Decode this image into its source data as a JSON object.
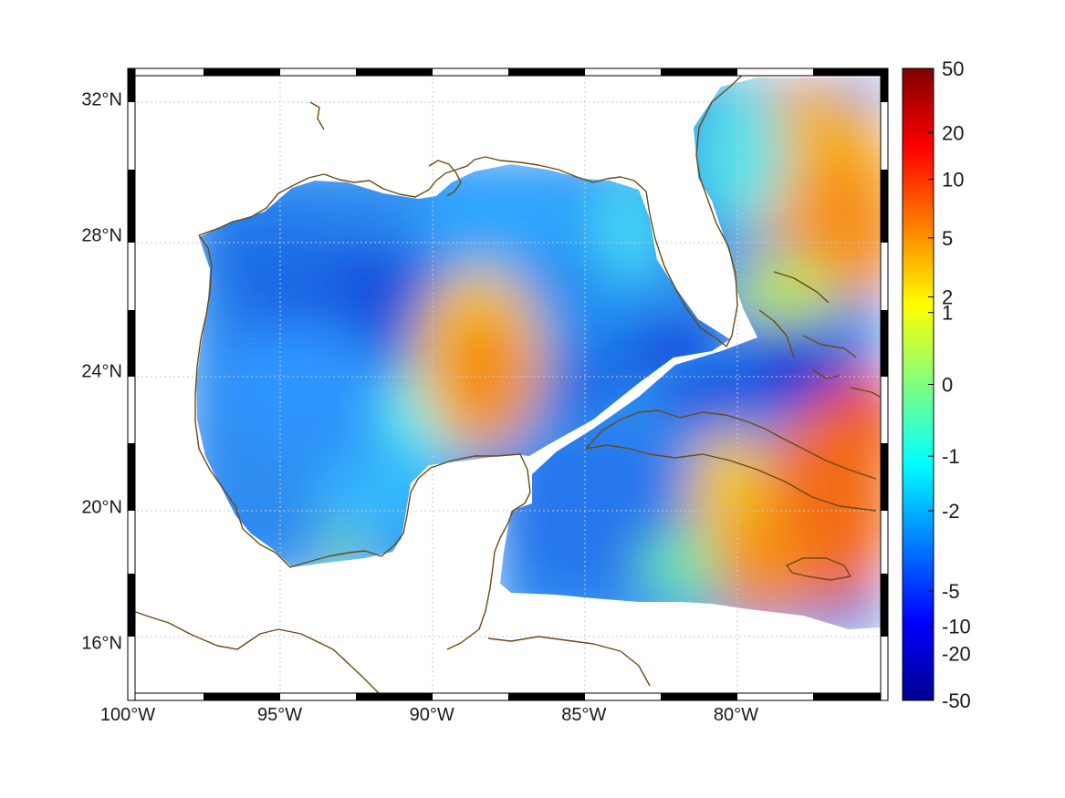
{
  "map": {
    "kind": "gridded-field",
    "region": "Gulf of Mexico and western Caribbean",
    "lon_range": [
      -100,
      -75
    ],
    "lat_range": [
      14.3,
      32.9
    ],
    "lon_ticks": [
      {
        "value": -100,
        "label": "100°W"
      },
      {
        "value": -95,
        "label": "95°W"
      },
      {
        "value": -90,
        "label": "90°W"
      },
      {
        "value": -85,
        "label": "85°W"
      },
      {
        "value": -80,
        "label": "80°W"
      }
    ],
    "lat_ticks": [
      {
        "value": 32,
        "label": "32°N"
      },
      {
        "value": 28,
        "label": "28°N"
      },
      {
        "value": 24,
        "label": "24°N"
      },
      {
        "value": 20,
        "label": "20°N"
      },
      {
        "value": 16,
        "label": "16°N"
      }
    ],
    "gridlines": "dotted",
    "frame_style": "alternating black and white",
    "coastline_color": "#6b4a12",
    "land_color": "#ffffff"
  },
  "colorbar": {
    "colormap": "jet",
    "scale": "symmetric log",
    "range": [
      -50,
      50
    ],
    "ticks": [
      {
        "value": 50,
        "label": "50"
      },
      {
        "value": 20,
        "label": "20"
      },
      {
        "value": 10,
        "label": "10"
      },
      {
        "value": 5,
        "label": "5"
      },
      {
        "value": 2,
        "label": "2"
      },
      {
        "value": 1,
        "label": "1"
      },
      {
        "value": 0,
        "label": "0"
      },
      {
        "value": -1,
        "label": "-1"
      },
      {
        "value": -2,
        "label": "-2"
      },
      {
        "value": -5,
        "label": "-5"
      },
      {
        "value": -10,
        "label": "-10"
      },
      {
        "value": -20,
        "label": "-20"
      },
      {
        "value": -50,
        "label": "-50"
      }
    ]
  },
  "field_regions": [
    {
      "name": "northern-gulf",
      "value": -6
    },
    {
      "name": "central-western-gulf",
      "value": -12
    },
    {
      "name": "southwestern-gulf",
      "value": -4
    },
    {
      "name": "loop-current-eddy",
      "value": 6
    },
    {
      "name": "eastern-gulf",
      "value": -4
    },
    {
      "name": "florida-straits",
      "value": -12
    },
    {
      "name": "northwestern-caribbean",
      "value": -5
    },
    {
      "name": "atlantic-east",
      "value": 10
    },
    {
      "name": "atlantic-north",
      "value": 3
    },
    {
      "name": "caribbean-east",
      "value": 8
    }
  ]
}
